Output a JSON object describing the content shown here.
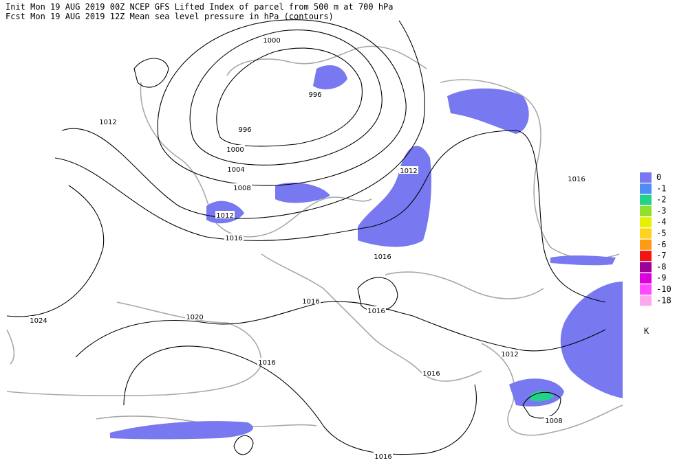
{
  "header": {
    "line1": "Init  Mon 19 AUG 2019 00Z  NCEP GFS Lifted Index of parcel from 500 m at 700 hPa",
    "line2": "Fcst Mon 19 AUG 2019 12Z  Mean sea level pressure in hPa (contours)"
  },
  "contour_labels": [
    "1000",
    "996",
    "996",
    "1000",
    "1004",
    "1008",
    "1012",
    "1012",
    "1012",
    "1016",
    "1016",
    "1016",
    "1016",
    "1016",
    "1016",
    "1016",
    "1016",
    "1020",
    "1024",
    "1012",
    "1008"
  ],
  "legend": {
    "entries": [
      {
        "label": "0",
        "color": "#7878f0"
      },
      {
        "label": "-1",
        "color": "#4f8cf5"
      },
      {
        "label": "-2",
        "color": "#22d28a"
      },
      {
        "label": "-3",
        "color": "#8fe02a"
      },
      {
        "label": "-4",
        "color": "#e6f000"
      },
      {
        "label": "-5",
        "color": "#ffd21e"
      },
      {
        "label": "-6",
        "color": "#ff9a14"
      },
      {
        "label": "-7",
        "color": "#f51414"
      },
      {
        "label": "-8",
        "color": "#a0009a"
      },
      {
        "label": "-9",
        "color": "#dc00dc"
      },
      {
        "label": "-10",
        "color": "#ff4bff"
      },
      {
        "label": "-18",
        "color": "#ffa8f0"
      }
    ],
    "unit": "K"
  }
}
